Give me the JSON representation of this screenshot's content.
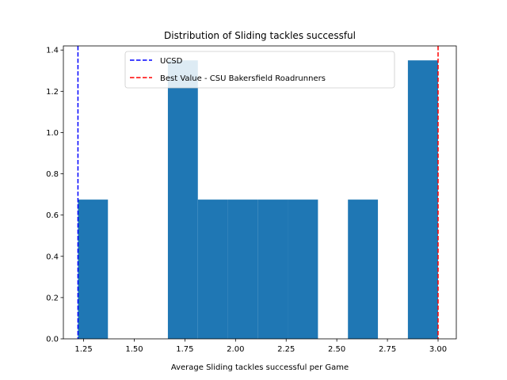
{
  "chart_data": {
    "type": "bar",
    "title": "Distribution of Sliding tackles successful",
    "xlabel": "Average Sliding tackles successful per Game",
    "ylabel": "",
    "xlim": [
      1.15,
      3.09
    ],
    "ylim": [
      0,
      1.42
    ],
    "bin_edges": [
      1.222,
      1.37,
      1.518,
      1.666,
      1.814,
      1.962,
      2.111,
      2.259,
      2.407,
      2.555,
      2.703,
      2.851,
      3.0
    ],
    "values": [
      0.675,
      0,
      0,
      1.35,
      0.675,
      0.675,
      0.675,
      0.675,
      0,
      0.675,
      0,
      1.35
    ],
    "bar_color": "#1f77b4",
    "x_ticks": [
      1.25,
      1.5,
      1.75,
      2.0,
      2.25,
      2.5,
      2.75,
      3.0
    ],
    "x_tick_labels": [
      "1.25",
      "1.50",
      "1.75",
      "2.00",
      "2.25",
      "2.50",
      "2.75",
      "3.00"
    ],
    "y_ticks": [
      0,
      0.2,
      0.4,
      0.6,
      0.8,
      1.0,
      1.2,
      1.4
    ],
    "y_tick_labels": [
      "0.0",
      "0.2",
      "0.4",
      "0.6",
      "0.8",
      "1.0",
      "1.2",
      "1.4"
    ],
    "reference_lines": [
      {
        "name": "UCSD",
        "x": 1.222,
        "color": "#0000ff",
        "style": "dashed"
      },
      {
        "name": "Best Value - CSU Bakersfield Roadrunners",
        "x": 3.0,
        "color": "#ff0000",
        "style": "dashed"
      }
    ],
    "legend": {
      "placement": "upper-center",
      "entries": [
        "UCSD",
        "Best Value - CSU Bakersfield Roadrunners"
      ]
    },
    "grid": false
  }
}
